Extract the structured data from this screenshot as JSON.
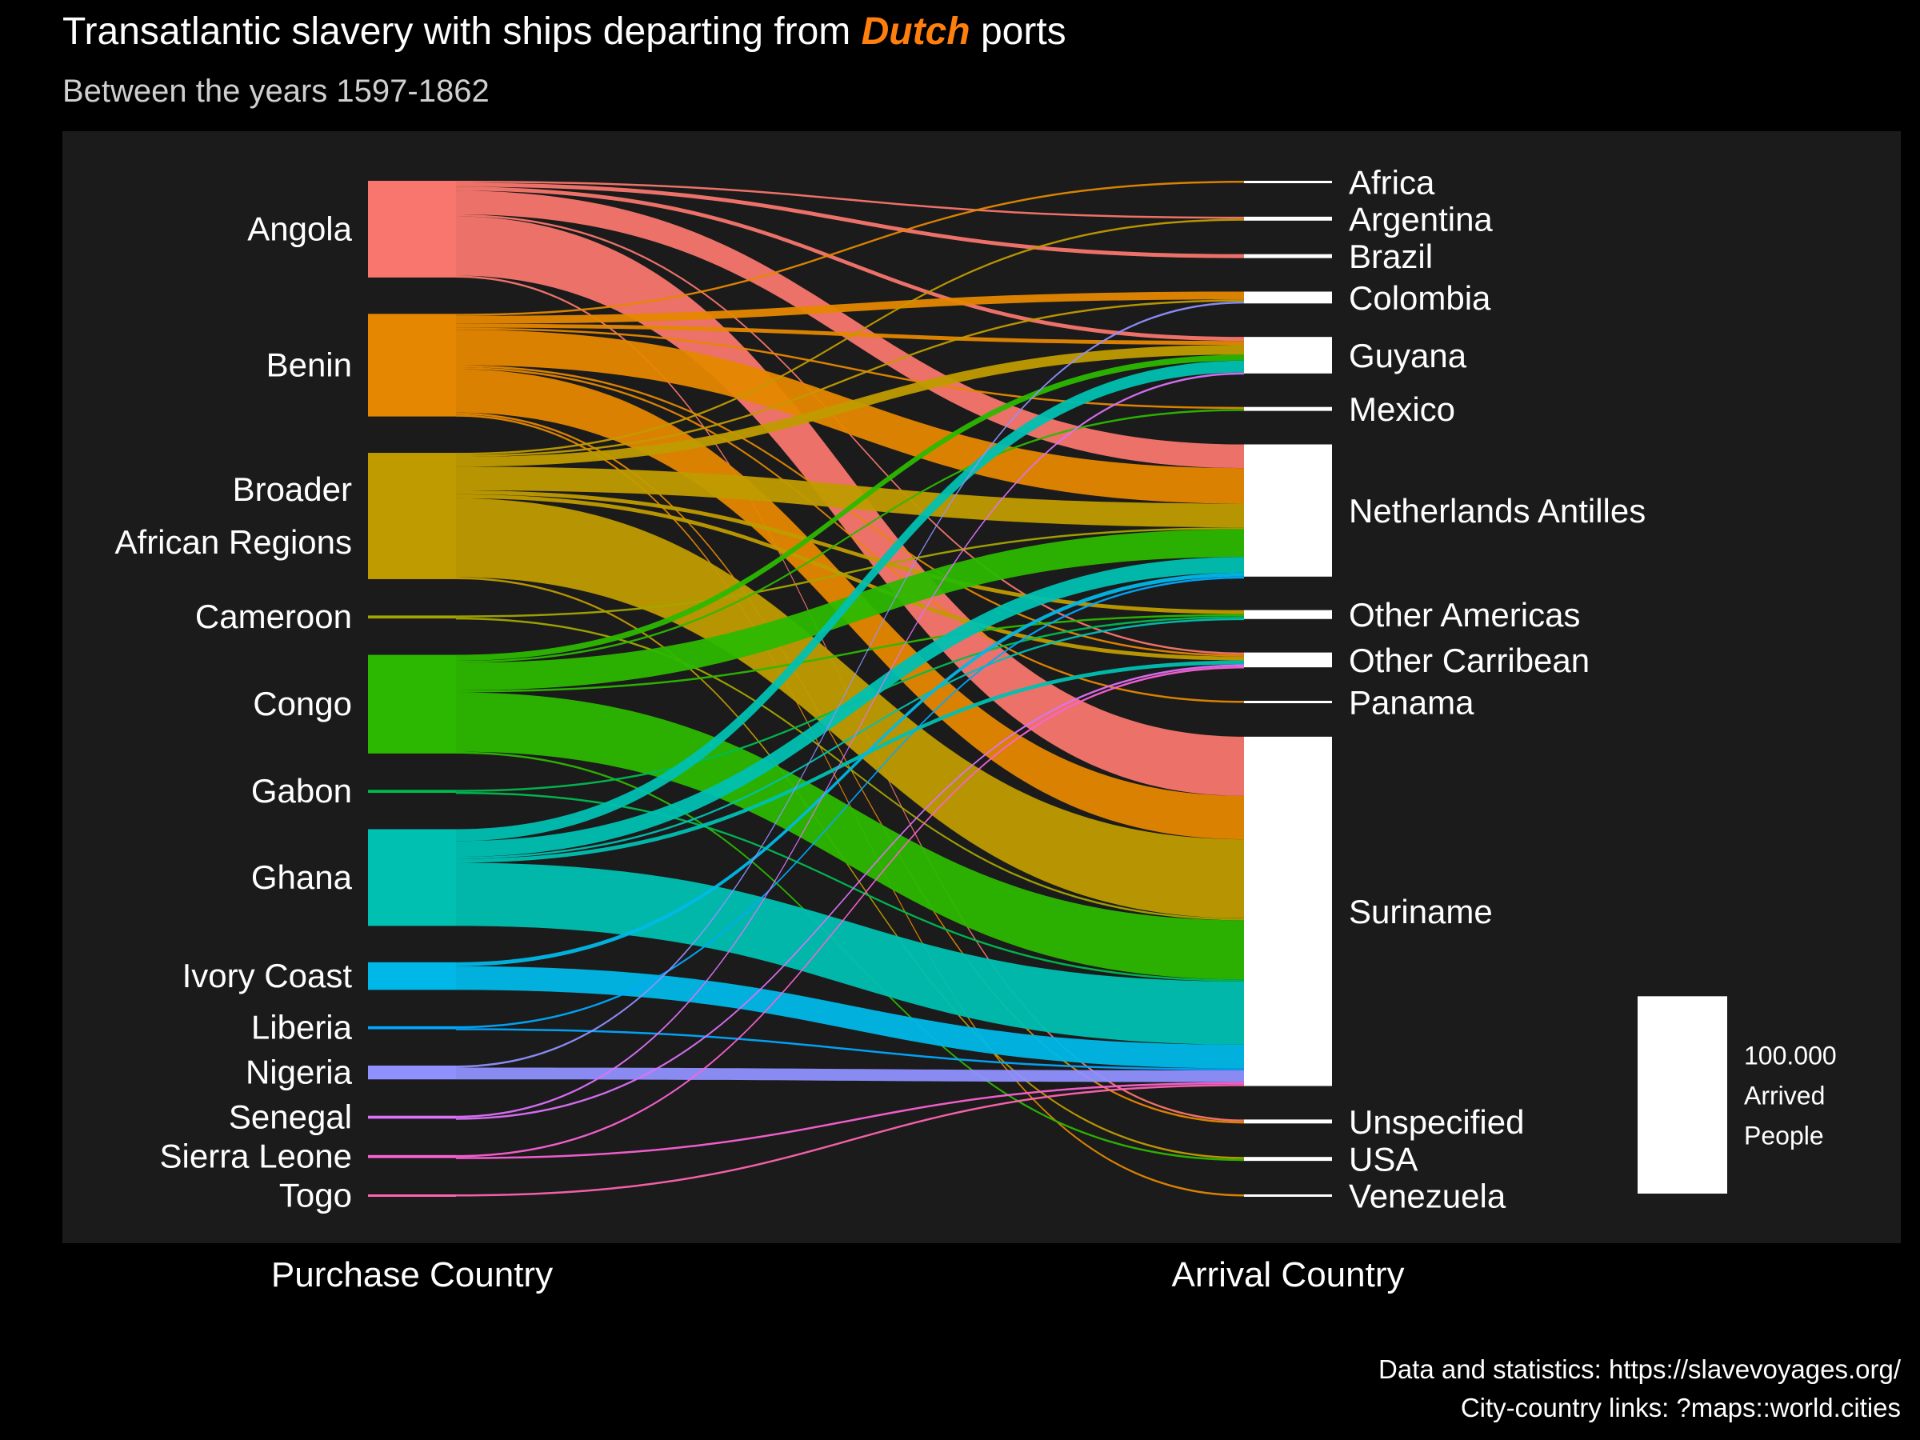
{
  "header": {
    "title_pre": "Transatlantic slavery with ships departing from ",
    "title_highlight": "Dutch",
    "title_post": " ports",
    "subtitle": "Between the years 1597-1862"
  },
  "credits": {
    "line1": "Data and statistics: https://slavevoyages.org/",
    "line2": "City-country links: ?maps::world.cities"
  },
  "colors": {
    "background": "#000000",
    "panel": "#1b1b1b",
    "title_highlight": "#ff7f0e",
    "arrival_node": "#ffffff"
  },
  "chart_data": {
    "type": "sankey",
    "xlabel_left": "Purchase Country",
    "xlabel_right": "Arrival Country",
    "unit": "Arrived People",
    "legend": {
      "value": 100000,
      "label_value": "100.000",
      "label_line1": "Arrived",
      "label_line2": "People",
      "placement": "bottom-right"
    },
    "sources": [
      {
        "name": "Angola",
        "label_lines": [
          "Angola"
        ],
        "color": "#f8766d"
      },
      {
        "name": "Benin",
        "label_lines": [
          "Benin"
        ],
        "color": "#e58700"
      },
      {
        "name": "Broader African Regions",
        "label_lines": [
          "Broader",
          "African Regions"
        ],
        "color": "#c09b00"
      },
      {
        "name": "Cameroon",
        "label_lines": [
          "Cameroon"
        ],
        "color": "#a3a500"
      },
      {
        "name": "Congo",
        "label_lines": [
          "Congo"
        ],
        "color": "#2cb800"
      },
      {
        "name": "Gabon",
        "label_lines": [
          "Gabon"
        ],
        "color": "#00bc51"
      },
      {
        "name": "Ghana",
        "label_lines": [
          "Ghana"
        ],
        "color": "#00c0b1"
      },
      {
        "name": "Ivory Coast",
        "label_lines": [
          "Ivory Coast"
        ],
        "color": "#00b8e7"
      },
      {
        "name": "Liberia",
        "label_lines": [
          "Liberia"
        ],
        "color": "#00a9ff"
      },
      {
        "name": "Nigeria",
        "label_lines": [
          "Nigeria"
        ],
        "color": "#8f91ff"
      },
      {
        "name": "Senegal",
        "label_lines": [
          "Senegal"
        ],
        "color": "#dc71fa"
      },
      {
        "name": "Sierra Leone",
        "label_lines": [
          "Sierra Leone"
        ],
        "color": "#fc61d5"
      },
      {
        "name": "Togo",
        "label_lines": [
          "Togo"
        ],
        "color": "#ff64b0"
      }
    ],
    "targets": [
      {
        "name": "Africa"
      },
      {
        "name": "Argentina"
      },
      {
        "name": "Brazil"
      },
      {
        "name": "Colombia"
      },
      {
        "name": "Guyana"
      },
      {
        "name": "Mexico"
      },
      {
        "name": "Netherlands Antilles"
      },
      {
        "name": "Other Americas"
      },
      {
        "name": "Other Carribean"
      },
      {
        "name": "Panama"
      },
      {
        "name": "Suriname"
      },
      {
        "name": "Unspecified"
      },
      {
        "name": "USA"
      },
      {
        "name": "Venezuela"
      }
    ],
    "flows": [
      {
        "source": "Angola",
        "target": "Suriname",
        "value": 30000
      },
      {
        "source": "Angola",
        "target": "Netherlands Antilles",
        "value": 12000
      },
      {
        "source": "Angola",
        "target": "Argentina",
        "value": 1000
      },
      {
        "source": "Angola",
        "target": "Brazil",
        "value": 2000
      },
      {
        "source": "Angola",
        "target": "Guyana",
        "value": 2000
      },
      {
        "source": "Angola",
        "target": "Other Carribean",
        "value": 1000
      },
      {
        "source": "Angola",
        "target": "Unspecified",
        "value": 1000
      },
      {
        "source": "Benin",
        "target": "Suriname",
        "value": 22000
      },
      {
        "source": "Benin",
        "target": "Netherlands Antilles",
        "value": 18000
      },
      {
        "source": "Benin",
        "target": "Colombia",
        "value": 4000
      },
      {
        "source": "Benin",
        "target": "Guyana",
        "value": 2000
      },
      {
        "source": "Benin",
        "target": "Africa",
        "value": 1000
      },
      {
        "source": "Benin",
        "target": "Mexico",
        "value": 1000
      },
      {
        "source": "Benin",
        "target": "Other Carribean",
        "value": 1000
      },
      {
        "source": "Benin",
        "target": "Panama",
        "value": 1000
      },
      {
        "source": "Benin",
        "target": "Unspecified",
        "value": 1000
      },
      {
        "source": "Benin",
        "target": "Venezuela",
        "value": 1000
      },
      {
        "source": "Broader African Regions",
        "target": "Suriname",
        "value": 40000
      },
      {
        "source": "Broader African Regions",
        "target": "Netherlands Antilles",
        "value": 12000
      },
      {
        "source": "Broader African Regions",
        "target": "Guyana",
        "value": 5000
      },
      {
        "source": "Broader African Regions",
        "target": "Colombia",
        "value": 1000
      },
      {
        "source": "Broader African Regions",
        "target": "Argentina",
        "value": 1000
      },
      {
        "source": "Broader African Regions",
        "target": "Other Americas",
        "value": 2000
      },
      {
        "source": "Broader African Regions",
        "target": "Other Carribean",
        "value": 2000
      },
      {
        "source": "Broader African Regions",
        "target": "USA",
        "value": 1000
      },
      {
        "source": "Cameroon",
        "target": "Suriname",
        "value": 1000
      },
      {
        "source": "Cameroon",
        "target": "Netherlands Antilles",
        "value": 500
      },
      {
        "source": "Congo",
        "target": "Suriname",
        "value": 30000
      },
      {
        "source": "Congo",
        "target": "Netherlands Antilles",
        "value": 14000
      },
      {
        "source": "Congo",
        "target": "Guyana",
        "value": 3000
      },
      {
        "source": "Congo",
        "target": "Mexico",
        "value": 1000
      },
      {
        "source": "Congo",
        "target": "Other Americas",
        "value": 1000
      },
      {
        "source": "Congo",
        "target": "USA",
        "value": 1000
      },
      {
        "source": "Gabon",
        "target": "Suriname",
        "value": 1000
      },
      {
        "source": "Gabon",
        "target": "Other Americas",
        "value": 500
      },
      {
        "source": "Ghana",
        "target": "Suriname",
        "value": 32000
      },
      {
        "source": "Ghana",
        "target": "Netherlands Antilles",
        "value": 8000
      },
      {
        "source": "Ghana",
        "target": "Guyana",
        "value": 6000
      },
      {
        "source": "Ghana",
        "target": "Other Americas",
        "value": 1000
      },
      {
        "source": "Ghana",
        "target": "Other Carribean",
        "value": 2000
      },
      {
        "source": "Ivory Coast",
        "target": "Suriname",
        "value": 12000
      },
      {
        "source": "Ivory Coast",
        "target": "Netherlands Antilles",
        "value": 2000
      },
      {
        "source": "Liberia",
        "target": "Suriname",
        "value": 1000
      },
      {
        "source": "Liberia",
        "target": "Netherlands Antilles",
        "value": 500
      },
      {
        "source": "Nigeria",
        "target": "Suriname",
        "value": 6000
      },
      {
        "source": "Nigeria",
        "target": "Colombia",
        "value": 1000
      },
      {
        "source": "Senegal",
        "target": "Other Carribean",
        "value": 1000
      },
      {
        "source": "Senegal",
        "target": "Guyana",
        "value": 500
      },
      {
        "source": "Sierra Leone",
        "target": "Suriname",
        "value": 1000
      },
      {
        "source": "Sierra Leone",
        "target": "Other Carribean",
        "value": 500
      },
      {
        "source": "Togo",
        "target": "Suriname",
        "value": 1000
      }
    ]
  }
}
